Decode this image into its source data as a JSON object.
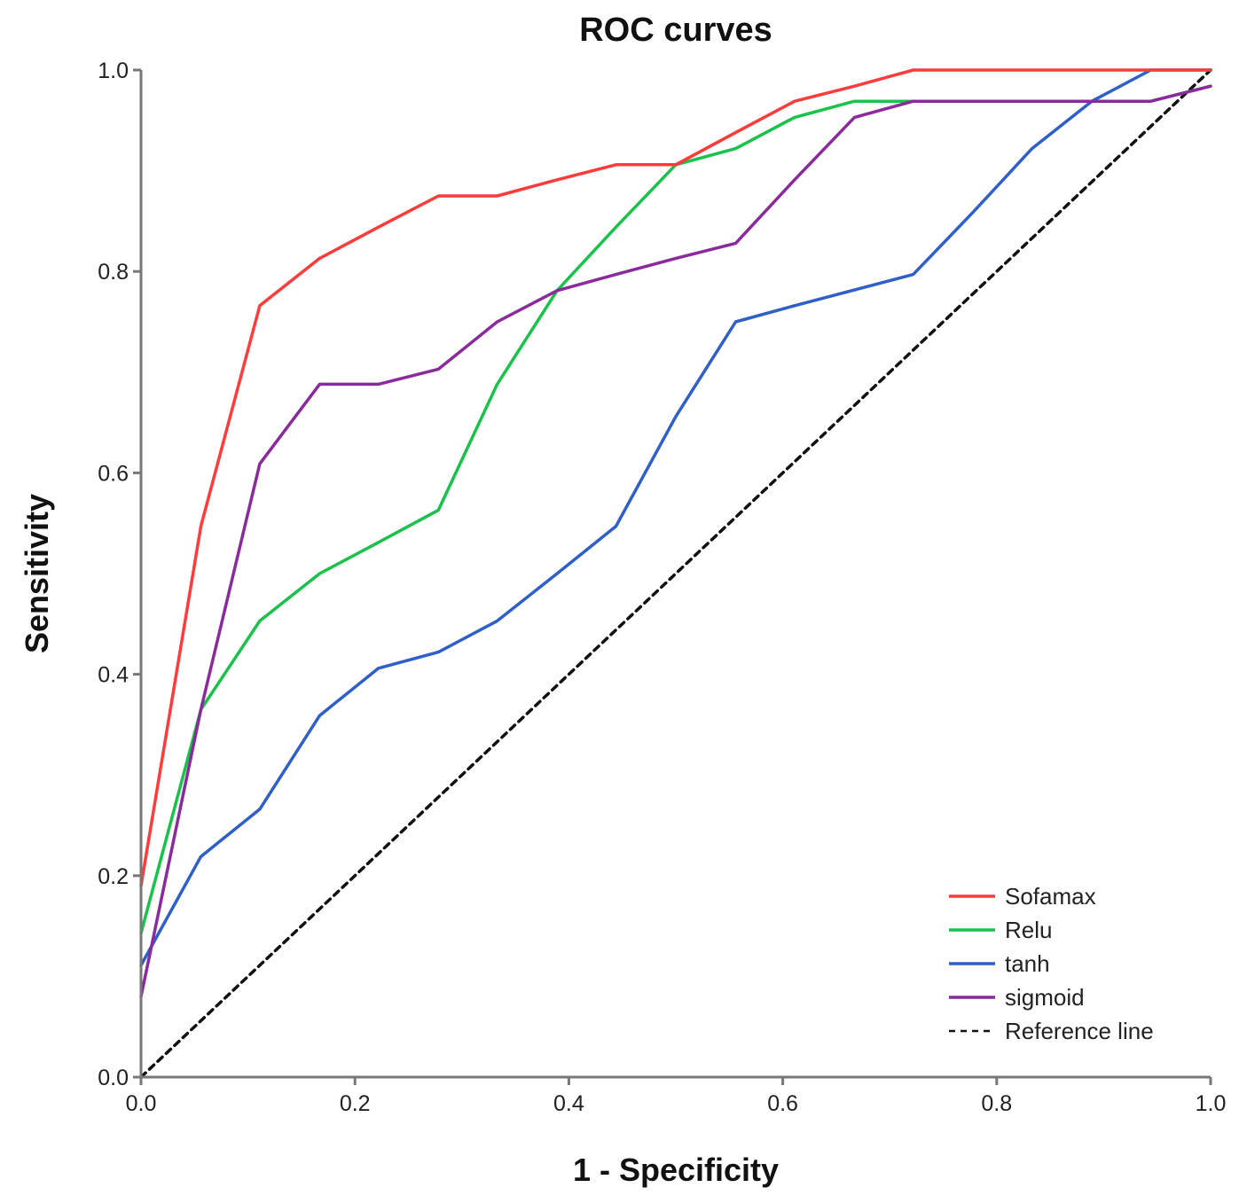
{
  "chart_data": {
    "type": "line",
    "title": "ROC curves",
    "xlabel": "1 - Specificity",
    "ylabel": "Sensitivity",
    "xlim": [
      0,
      1
    ],
    "ylim": [
      0,
      1
    ],
    "x_ticks": [
      "0.0",
      "0.2",
      "0.4",
      "0.6",
      "0.8",
      "1.0"
    ],
    "y_ticks": [
      "0.0",
      "0.2",
      "0.4",
      "0.6",
      "0.8",
      "1.0"
    ],
    "grid": false,
    "legend_position": "bottom-right",
    "series": [
      {
        "name": "Sofamax",
        "color": "#ff3b3b",
        "dashed": false,
        "points": [
          [
            0.0,
            0.19
          ],
          [
            0.056,
            0.547
          ],
          [
            0.111,
            0.766
          ],
          [
            0.167,
            0.813
          ],
          [
            0.222,
            0.844
          ],
          [
            0.278,
            0.875
          ],
          [
            0.333,
            0.875
          ],
          [
            0.389,
            0.891
          ],
          [
            0.444,
            0.906
          ],
          [
            0.5,
            0.906
          ],
          [
            0.556,
            0.938
          ],
          [
            0.611,
            0.969
          ],
          [
            0.667,
            0.984
          ],
          [
            0.722,
            1.0
          ],
          [
            1.0,
            1.0
          ]
        ]
      },
      {
        "name": "Relu",
        "color": "#19c24a",
        "dashed": false,
        "points": [
          [
            0.0,
            0.143
          ],
          [
            0.056,
            0.365
          ],
          [
            0.111,
            0.453
          ],
          [
            0.167,
            0.5
          ],
          [
            0.222,
            0.531
          ],
          [
            0.278,
            0.563
          ],
          [
            0.333,
            0.688
          ],
          [
            0.389,
            0.781
          ],
          [
            0.444,
            0.844
          ],
          [
            0.5,
            0.906
          ],
          [
            0.556,
            0.922
          ],
          [
            0.611,
            0.953
          ],
          [
            0.667,
            0.969
          ],
          [
            0.722,
            0.969
          ],
          [
            0.944,
            0.969
          ],
          [
            1.0,
            0.984
          ]
        ]
      },
      {
        "name": "tanh",
        "color": "#2f5fc9",
        "dashed": false,
        "points": [
          [
            0.0,
            0.111
          ],
          [
            0.056,
            0.219
          ],
          [
            0.111,
            0.266
          ],
          [
            0.167,
            0.359
          ],
          [
            0.222,
            0.406
          ],
          [
            0.278,
            0.422
          ],
          [
            0.333,
            0.453
          ],
          [
            0.389,
            0.5
          ],
          [
            0.444,
            0.547
          ],
          [
            0.5,
            0.656
          ],
          [
            0.556,
            0.75
          ],
          [
            0.611,
            0.766
          ],
          [
            0.722,
            0.797
          ],
          [
            0.778,
            0.859
          ],
          [
            0.833,
            0.922
          ],
          [
            0.889,
            0.969
          ],
          [
            0.944,
            1.0
          ],
          [
            1.0,
            1.0
          ]
        ]
      },
      {
        "name": "sigmoid",
        "color": "#8a2a9c",
        "dashed": false,
        "points": [
          [
            0.0,
            0.08
          ],
          [
            0.056,
            0.365
          ],
          [
            0.111,
            0.609
          ],
          [
            0.167,
            0.688
          ],
          [
            0.222,
            0.688
          ],
          [
            0.278,
            0.703
          ],
          [
            0.333,
            0.75
          ],
          [
            0.389,
            0.781
          ],
          [
            0.444,
            0.797
          ],
          [
            0.5,
            0.813
          ],
          [
            0.556,
            0.828
          ],
          [
            0.611,
            0.891
          ],
          [
            0.667,
            0.953
          ],
          [
            0.722,
            0.969
          ],
          [
            0.944,
            0.969
          ],
          [
            1.0,
            0.984
          ]
        ]
      },
      {
        "name": "Reference line",
        "color": "#111111",
        "dashed": true,
        "points": [
          [
            0.0,
            0.0
          ],
          [
            1.0,
            1.0
          ]
        ]
      }
    ]
  }
}
